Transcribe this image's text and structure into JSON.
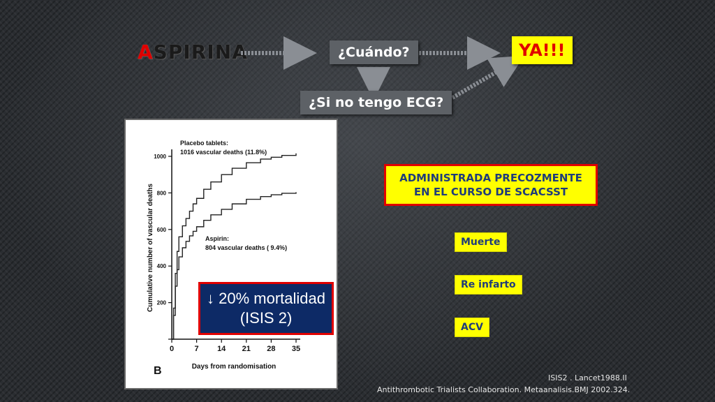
{
  "title": {
    "first_letter": "A",
    "rest": "SPIRINA"
  },
  "boxes": {
    "cuando": "¿Cuándo?",
    "si_no_ecg": "¿Si no tengo ECG?",
    "ya": "YA!!!",
    "admin_line1": "ADMINISTRADA PRECOZMENTE",
    "admin_line2": "EN EL CURSO DE SCACSST",
    "muerte": "Muerte",
    "reinfarto": "Re infarto",
    "acv": "ACV",
    "mortalidad_line1": "↓ 20% mortalidad",
    "mortalidad_line2": "(ISIS 2)"
  },
  "references": {
    "ref1": "ISIS2 . Lancet1988.II",
    "ref2": "Antithrombotic  Trialists  Collaboration. Metaanalisis.BMJ 2002.324."
  },
  "colors": {
    "accent_red": "#e00000",
    "highlight_yellow": "#ffff00",
    "navy": "#0d2a66"
  },
  "chart_data": {
    "type": "line",
    "panel_label": "B",
    "xlabel": "Days from randomisation",
    "ylabel": "Cumulative number of vascular deaths",
    "x_ticks": [
      0,
      7,
      14,
      21,
      28,
      35
    ],
    "y_ticks": [
      0,
      200,
      400,
      600,
      800,
      1000
    ],
    "xlim": [
      0,
      35
    ],
    "ylim": [
      0,
      1000
    ],
    "annotations": [
      {
        "line1": "Placebo tablets:",
        "line2": "1016 vascular deaths (11.8%)"
      },
      {
        "line1": "Aspirin:",
        "line2": "804 vascular deaths ( 9.4%)"
      }
    ],
    "series": [
      {
        "x": [
          0,
          0.5,
          1,
          1.5,
          2,
          3,
          4,
          5,
          6,
          7,
          9,
          11,
          14,
          17,
          21,
          25,
          28,
          31,
          35
        ],
        "y": [
          0,
          170,
          360,
          480,
          560,
          620,
          660,
          700,
          740,
          770,
          820,
          860,
          900,
          935,
          965,
          985,
          995,
          1005,
          1016
        ]
      },
      {
        "x": [
          0,
          0.5,
          1,
          1.5,
          2,
          3,
          4,
          5,
          6,
          7,
          9,
          11,
          14,
          17,
          21,
          25,
          28,
          31,
          35
        ],
        "y": [
          0,
          130,
          290,
          380,
          450,
          500,
          535,
          565,
          590,
          615,
          650,
          680,
          710,
          740,
          765,
          780,
          790,
          798,
          804
        ]
      }
    ]
  }
}
